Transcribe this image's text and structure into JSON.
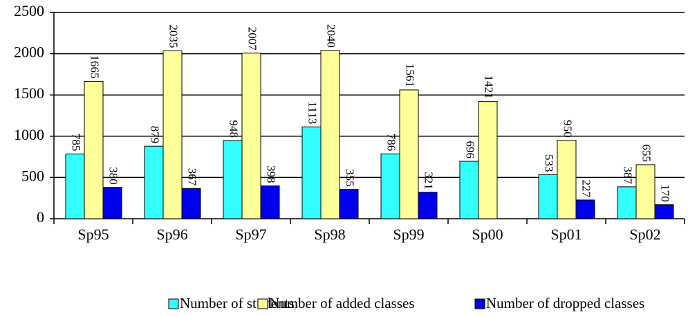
{
  "chart_data": {
    "type": "bar",
    "categories": [
      "Sp95",
      "Sp96",
      "Sp97",
      "Sp98",
      "Sp99",
      "Sp00",
      "Sp01",
      "Sp02"
    ],
    "series": [
      {
        "name": "Number of students",
        "color": "#33ffff",
        "values": [
          785,
          879,
          948,
          1113,
          786,
          696,
          533,
          387
        ]
      },
      {
        "name": "Number of added classes",
        "color": "#ffff99",
        "values": [
          1665,
          2035,
          2007,
          2040,
          1561,
          1421,
          950,
          655
        ]
      },
      {
        "name": "Number of dropped classes",
        "color": "#0000ee",
        "values": [
          380,
          367,
          398,
          355,
          321,
          null,
          227,
          170
        ]
      }
    ],
    "ylim": [
      0,
      2500
    ],
    "yticks": [
      0,
      500,
      1000,
      1500,
      2000,
      2500
    ],
    "grid": true,
    "legend": "bottom"
  }
}
